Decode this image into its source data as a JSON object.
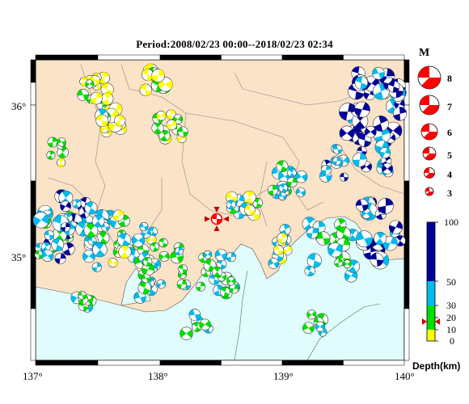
{
  "title": "Period:2008/02/23 00:00--2018/02/23 02:34",
  "lon_ticks": [
    "137°",
    "138°",
    "139°",
    "140°"
  ],
  "lat_ticks": [
    "36°",
    "35°"
  ],
  "magnitude_legend": {
    "header": "M",
    "items": [
      "8",
      "7",
      "6",
      "5",
      "4",
      "3"
    ],
    "color": "#ff0000"
  },
  "depth_scale": {
    "ticks": [
      "100",
      "50",
      "30",
      "20",
      "10",
      "0"
    ],
    "unit_label": "Depth(km)",
    "colors": {
      "shallow": "#ffff00",
      "mid_shallow": "#00dd00",
      "mid": "#00bbee",
      "deep": "#000099"
    }
  },
  "colors": {
    "land": "#fbe3c8",
    "sea": "#e0fcfc",
    "frame": "#000000"
  }
}
